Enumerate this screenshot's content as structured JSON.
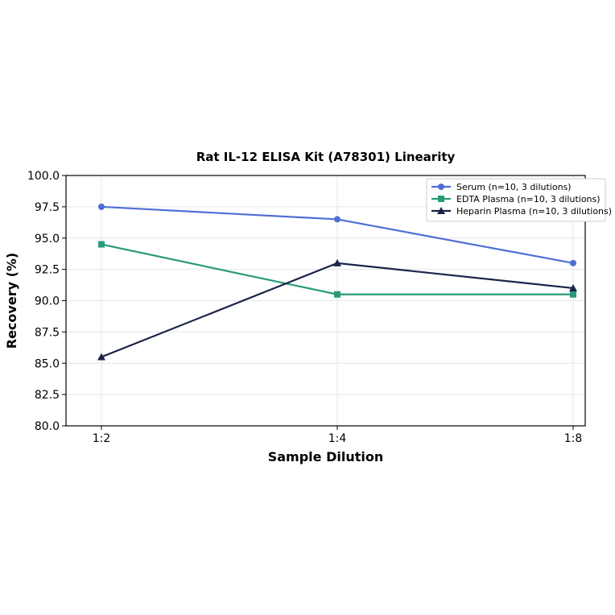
{
  "chart_data": {
    "type": "line",
    "title": "Rat IL-12 ELISA Kit (A78301) Linearity",
    "xlabel": "Sample Dilution",
    "ylabel": "Recovery (%)",
    "categories": [
      "1:2",
      "1:4",
      "1:8"
    ],
    "ylim": [
      80.0,
      100.0
    ],
    "yticks": [
      "80.0",
      "82.5",
      "85.0",
      "87.5",
      "90.0",
      "92.5",
      "95.0",
      "97.5",
      "100.0"
    ],
    "grid": true,
    "legend_position": "top-right",
    "series": [
      {
        "name": "Serum (n=10, 3 dilutions)",
        "values": [
          97.5,
          96.5,
          93.0
        ],
        "color": "#4f6fd6",
        "marker": "circle"
      },
      {
        "name": "EDTA Plasma (n=10, 3 dilutions)",
        "values": [
          94.5,
          90.5,
          90.5
        ],
        "color": "#2a9a7a",
        "marker": "square"
      },
      {
        "name": "Heparin Plasma (n=10, 3 dilutions)",
        "values": [
          85.5,
          93.0,
          91.0
        ],
        "color": "#1b2449",
        "marker": "triangle"
      }
    ]
  }
}
